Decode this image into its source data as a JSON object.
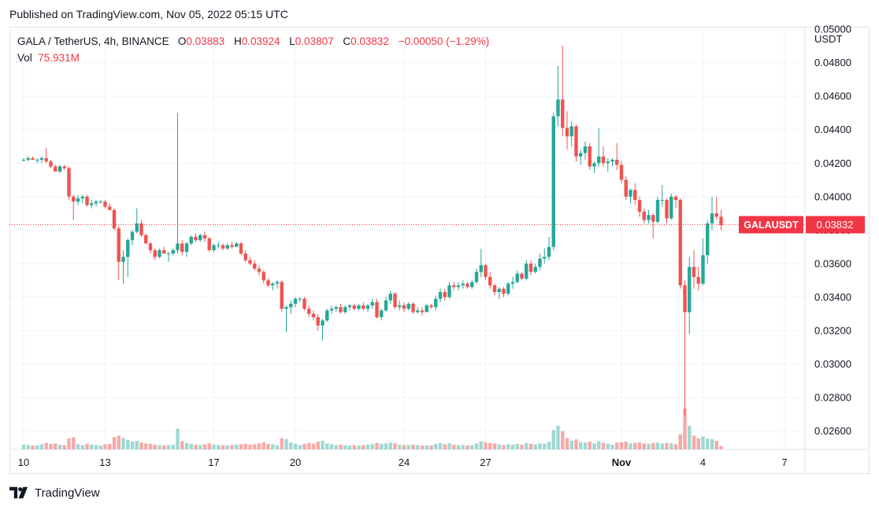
{
  "header": {
    "published": "Published on TradingView.com, Nov 05, 2022 05:15 UTC"
  },
  "legend": {
    "symbol": "GALA / TetherUS, 4h, BINANCE",
    "open_label": "O",
    "open": "0.03883",
    "high_label": "H",
    "high": "0.03924",
    "low_label": "L",
    "low": "0.03807",
    "close_label": "C",
    "close": "0.03832",
    "change": "−0.00050 (−1.29%)",
    "vol_label": "Vol",
    "vol": "75.931M"
  },
  "axis": {
    "currency": "USDT"
  },
  "price_tag": {
    "symbol": "GALAUSDT",
    "value": "0.03832"
  },
  "brand": {
    "name": "TradingView",
    "icon": "tradingview-logo-icon"
  },
  "colors": {
    "up": "#26a69a",
    "down": "#ef5350",
    "up_vol": "#9fd8d3",
    "down_vol": "#f7a9a7",
    "tag": "#f23645"
  },
  "chart_data": {
    "type": "candlestick",
    "interval": "4h",
    "ylim": [
      0.0249,
      0.0501
    ],
    "y_ticks": [
      "0.02600",
      "0.02800",
      "0.03000",
      "0.03200",
      "0.03400",
      "0.03600",
      "0.03800",
      "0.04000",
      "0.04200",
      "0.04400",
      "0.04600",
      "0.04800",
      "0.05000"
    ],
    "x_ticks": [
      {
        "label": "10",
        "index": 0
      },
      {
        "label": "13",
        "index": 18
      },
      {
        "label": "17",
        "index": 42
      },
      {
        "label": "20",
        "index": 60
      },
      {
        "label": "24",
        "index": 84
      },
      {
        "label": "27",
        "index": 102
      },
      {
        "label": "Nov",
        "index": 132
      },
      {
        "label": "4",
        "index": 150
      },
      {
        "label": "7",
        "index": 168
      }
    ],
    "last_close": 0.03832,
    "grid": true,
    "candles": [
      [
        0.0422,
        0.0423,
        0.0421,
        0.0422,
        1.1
      ],
      [
        0.0422,
        0.0424,
        0.0421,
        0.0423,
        1.0
      ],
      [
        0.0423,
        0.0424,
        0.0422,
        0.0422,
        0.9
      ],
      [
        0.0422,
        0.0423,
        0.042,
        0.0422,
        1.0
      ],
      [
        0.0422,
        0.0424,
        0.042,
        0.0423,
        1.2
      ],
      [
        0.0423,
        0.0429,
        0.042,
        0.0421,
        1.5
      ],
      [
        0.0421,
        0.0422,
        0.0417,
        0.0418,
        1.3
      ],
      [
        0.0418,
        0.0419,
        0.0415,
        0.0415,
        1.4
      ],
      [
        0.0415,
        0.0419,
        0.0414,
        0.0418,
        1.1
      ],
      [
        0.0418,
        0.0419,
        0.0416,
        0.0417,
        1.0
      ],
      [
        0.0417,
        0.0418,
        0.0398,
        0.04,
        2.5
      ],
      [
        0.04,
        0.0401,
        0.0386,
        0.0397,
        2.8
      ],
      [
        0.0397,
        0.0401,
        0.0395,
        0.0399,
        1.2
      ],
      [
        0.0399,
        0.0401,
        0.0396,
        0.04,
        1.0
      ],
      [
        0.04,
        0.0401,
        0.0394,
        0.0395,
        1.3
      ],
      [
        0.0395,
        0.0398,
        0.0393,
        0.0396,
        1.1
      ],
      [
        0.0396,
        0.0398,
        0.0394,
        0.0397,
        1.0
      ],
      [
        0.0397,
        0.0398,
        0.0396,
        0.0397,
        0.9
      ],
      [
        0.0397,
        0.0398,
        0.0393,
        0.0394,
        1.2
      ],
      [
        0.0394,
        0.0396,
        0.0392,
        0.0392,
        1.3
      ],
      [
        0.0392,
        0.0393,
        0.038,
        0.0381,
        2.9
      ],
      [
        0.0381,
        0.0382,
        0.035,
        0.0361,
        3.2
      ],
      [
        0.0361,
        0.0368,
        0.0348,
        0.0364,
        2.7
      ],
      [
        0.0364,
        0.0375,
        0.0352,
        0.0374,
        2.2
      ],
      [
        0.0374,
        0.038,
        0.0371,
        0.0379,
        1.8
      ],
      [
        0.0379,
        0.0393,
        0.0378,
        0.0384,
        2.0
      ],
      [
        0.0384,
        0.0386,
        0.0376,
        0.0377,
        1.6
      ],
      [
        0.0377,
        0.0378,
        0.0372,
        0.0372,
        1.4
      ],
      [
        0.0372,
        0.0373,
        0.0366,
        0.0368,
        1.3
      ],
      [
        0.0368,
        0.0369,
        0.0362,
        0.0364,
        1.1
      ],
      [
        0.0364,
        0.0369,
        0.0363,
        0.0368,
        1.0
      ],
      [
        0.0368,
        0.037,
        0.0366,
        0.0366,
        0.9
      ],
      [
        0.0366,
        0.0367,
        0.0361,
        0.0366,
        1.0
      ],
      [
        0.0366,
        0.0369,
        0.0365,
        0.0368,
        1.1
      ],
      [
        0.0368,
        0.045,
        0.0366,
        0.0372,
        4.8
      ],
      [
        0.0372,
        0.0374,
        0.0365,
        0.0367,
        1.9
      ],
      [
        0.0367,
        0.0373,
        0.0364,
        0.0372,
        1.5
      ],
      [
        0.0372,
        0.0377,
        0.0371,
        0.0376,
        1.3
      ],
      [
        0.0376,
        0.0378,
        0.0373,
        0.0374,
        1.1
      ],
      [
        0.0374,
        0.0378,
        0.0373,
        0.0377,
        1.0
      ],
      [
        0.0377,
        0.0379,
        0.0373,
        0.0375,
        1.2
      ],
      [
        0.0375,
        0.0376,
        0.0367,
        0.0368,
        1.4
      ],
      [
        0.0368,
        0.0372,
        0.0367,
        0.0371,
        1.1
      ],
      [
        0.0371,
        0.0373,
        0.0369,
        0.0371,
        1.0
      ],
      [
        0.0371,
        0.0372,
        0.0368,
        0.0369,
        1.0
      ],
      [
        0.0369,
        0.0372,
        0.0368,
        0.0371,
        0.9
      ],
      [
        0.0371,
        0.0373,
        0.0369,
        0.037,
        1.0
      ],
      [
        0.037,
        0.0373,
        0.037,
        0.0372,
        1.1
      ],
      [
        0.0372,
        0.0373,
        0.0365,
        0.0366,
        1.2
      ],
      [
        0.0366,
        0.0368,
        0.0361,
        0.0362,
        1.3
      ],
      [
        0.0362,
        0.0364,
        0.0359,
        0.036,
        1.1
      ],
      [
        0.036,
        0.0362,
        0.0356,
        0.0357,
        1.2
      ],
      [
        0.0357,
        0.0359,
        0.0353,
        0.0355,
        1.4
      ],
      [
        0.0355,
        0.0356,
        0.0348,
        0.035,
        1.6
      ],
      [
        0.035,
        0.0351,
        0.0346,
        0.0347,
        1.3
      ],
      [
        0.0347,
        0.0349,
        0.0344,
        0.0348,
        1.2
      ],
      [
        0.0348,
        0.035,
        0.0345,
        0.0349,
        1.0
      ],
      [
        0.0349,
        0.035,
        0.0331,
        0.0333,
        2.6
      ],
      [
        0.0333,
        0.0335,
        0.0319,
        0.0334,
        2.4
      ],
      [
        0.0334,
        0.0338,
        0.033,
        0.0336,
        1.6
      ],
      [
        0.0336,
        0.034,
        0.0334,
        0.0339,
        1.3
      ],
      [
        0.0339,
        0.034,
        0.0337,
        0.0339,
        1.0
      ],
      [
        0.0339,
        0.034,
        0.0332,
        0.0333,
        1.3
      ],
      [
        0.0333,
        0.0335,
        0.0328,
        0.033,
        1.5
      ],
      [
        0.033,
        0.0332,
        0.0326,
        0.0328,
        1.3
      ],
      [
        0.0328,
        0.033,
        0.032,
        0.0323,
        1.8
      ],
      [
        0.0323,
        0.0327,
        0.0314,
        0.0326,
        2.0
      ],
      [
        0.0326,
        0.0333,
        0.0325,
        0.0332,
        1.4
      ],
      [
        0.0332,
        0.0335,
        0.033,
        0.0333,
        1.2
      ],
      [
        0.0333,
        0.0335,
        0.0331,
        0.0334,
        1.0
      ],
      [
        0.0334,
        0.0336,
        0.033,
        0.0331,
        1.1
      ],
      [
        0.0331,
        0.0335,
        0.033,
        0.0334,
        1.0
      ],
      [
        0.0334,
        0.0336,
        0.0332,
        0.0335,
        0.9
      ],
      [
        0.0335,
        0.0336,
        0.0332,
        0.0333,
        1.0
      ],
      [
        0.0333,
        0.0336,
        0.0332,
        0.0335,
        0.9
      ],
      [
        0.0335,
        0.0337,
        0.0332,
        0.0333,
        1.0
      ],
      [
        0.0333,
        0.0336,
        0.0331,
        0.0335,
        1.1
      ],
      [
        0.0335,
        0.0339,
        0.0333,
        0.0337,
        1.2
      ],
      [
        0.0337,
        0.0339,
        0.0327,
        0.0328,
        1.5
      ],
      [
        0.0328,
        0.0333,
        0.0326,
        0.0332,
        1.3
      ],
      [
        0.0332,
        0.034,
        0.0331,
        0.0338,
        1.4
      ],
      [
        0.0338,
        0.0344,
        0.0336,
        0.0342,
        1.6
      ],
      [
        0.0342,
        0.0343,
        0.0333,
        0.0334,
        1.4
      ],
      [
        0.0334,
        0.0338,
        0.0332,
        0.0335,
        1.1
      ],
      [
        0.0335,
        0.0337,
        0.0331,
        0.0333,
        1.0
      ],
      [
        0.0333,
        0.0337,
        0.0332,
        0.0336,
        1.0
      ],
      [
        0.0336,
        0.0337,
        0.033,
        0.0331,
        1.1
      ],
      [
        0.0331,
        0.0334,
        0.033,
        0.0332,
        1.0
      ],
      [
        0.0332,
        0.0334,
        0.0329,
        0.0331,
        0.9
      ],
      [
        0.0331,
        0.0336,
        0.0331,
        0.0335,
        1.0
      ],
      [
        0.0335,
        0.0336,
        0.0333,
        0.0334,
        0.9
      ],
      [
        0.0334,
        0.0341,
        0.0332,
        0.0339,
        1.3
      ],
      [
        0.0339,
        0.0345,
        0.0337,
        0.0343,
        1.5
      ],
      [
        0.0343,
        0.0345,
        0.0338,
        0.034,
        1.2
      ],
      [
        0.034,
        0.0349,
        0.0339,
        0.0347,
        1.4
      ],
      [
        0.0347,
        0.0349,
        0.0344,
        0.0346,
        1.1
      ],
      [
        0.0346,
        0.0349,
        0.0344,
        0.0347,
        1.0
      ],
      [
        0.0347,
        0.035,
        0.0345,
        0.0348,
        1.0
      ],
      [
        0.0348,
        0.0349,
        0.0345,
        0.0346,
        0.9
      ],
      [
        0.0346,
        0.035,
        0.0345,
        0.0349,
        1.0
      ],
      [
        0.0349,
        0.0357,
        0.0348,
        0.0355,
        1.4
      ],
      [
        0.0355,
        0.0369,
        0.0352,
        0.0359,
        1.9
      ],
      [
        0.0359,
        0.036,
        0.035,
        0.0352,
        1.6
      ],
      [
        0.0352,
        0.0355,
        0.0345,
        0.0347,
        1.5
      ],
      [
        0.0347,
        0.0348,
        0.0341,
        0.0343,
        1.4
      ],
      [
        0.0343,
        0.0346,
        0.0339,
        0.0345,
        1.2
      ],
      [
        0.0345,
        0.0346,
        0.034,
        0.0342,
        1.0
      ],
      [
        0.0342,
        0.0349,
        0.0341,
        0.0348,
        1.2
      ],
      [
        0.0348,
        0.0352,
        0.0345,
        0.0349,
        1.1
      ],
      [
        0.0349,
        0.0356,
        0.0348,
        0.0354,
        1.3
      ],
      [
        0.0354,
        0.0355,
        0.035,
        0.0351,
        1.1
      ],
      [
        0.0351,
        0.0362,
        0.035,
        0.036,
        1.5
      ],
      [
        0.036,
        0.0362,
        0.0353,
        0.0355,
        1.3
      ],
      [
        0.0355,
        0.036,
        0.0354,
        0.0358,
        1.1
      ],
      [
        0.0358,
        0.0366,
        0.0356,
        0.0363,
        1.4
      ],
      [
        0.0363,
        0.0369,
        0.036,
        0.0364,
        1.3
      ],
      [
        0.0364,
        0.0376,
        0.0362,
        0.037,
        1.8
      ],
      [
        0.037,
        0.045,
        0.0368,
        0.0448,
        4.5
      ],
      [
        0.0448,
        0.0478,
        0.0442,
        0.0458,
        5.5
      ],
      [
        0.0458,
        0.049,
        0.0436,
        0.0441,
        4.2
      ],
      [
        0.0441,
        0.0451,
        0.0428,
        0.0436,
        2.6
      ],
      [
        0.0436,
        0.0445,
        0.043,
        0.0442,
        2.0
      ],
      [
        0.0442,
        0.0443,
        0.0421,
        0.0424,
        2.3
      ],
      [
        0.0424,
        0.0428,
        0.0419,
        0.0426,
        1.7
      ],
      [
        0.0426,
        0.0433,
        0.0422,
        0.043,
        1.6
      ],
      [
        0.043,
        0.0432,
        0.0416,
        0.0418,
        1.8
      ],
      [
        0.0418,
        0.0421,
        0.0414,
        0.042,
        1.4
      ],
      [
        0.042,
        0.0441,
        0.0418,
        0.0424,
        1.9
      ],
      [
        0.0424,
        0.043,
        0.0418,
        0.042,
        1.5
      ],
      [
        0.042,
        0.0423,
        0.0415,
        0.0421,
        1.3
      ],
      [
        0.0421,
        0.0423,
        0.0418,
        0.0422,
        1.1
      ],
      [
        0.0422,
        0.0432,
        0.0416,
        0.0419,
        1.6
      ],
      [
        0.0419,
        0.0421,
        0.0408,
        0.041,
        1.7
      ],
      [
        0.041,
        0.0412,
        0.0398,
        0.04,
        1.8
      ],
      [
        0.04,
        0.0405,
        0.0396,
        0.0404,
        1.4
      ],
      [
        0.0404,
        0.0408,
        0.0395,
        0.0398,
        1.5
      ],
      [
        0.0398,
        0.04,
        0.0388,
        0.0391,
        1.6
      ],
      [
        0.0391,
        0.0393,
        0.0384,
        0.0386,
        1.4
      ],
      [
        0.0386,
        0.0392,
        0.0384,
        0.0389,
        1.3
      ],
      [
        0.0389,
        0.039,
        0.0375,
        0.0385,
        1.5
      ],
      [
        0.0385,
        0.04,
        0.0384,
        0.0398,
        1.6
      ],
      [
        0.0398,
        0.0407,
        0.0394,
        0.0398,
        1.4
      ],
      [
        0.0398,
        0.0399,
        0.0384,
        0.0387,
        1.5
      ],
      [
        0.0387,
        0.0402,
        0.0386,
        0.04,
        1.4
      ],
      [
        0.04,
        0.0401,
        0.0393,
        0.0398,
        1.2
      ],
      [
        0.0398,
        0.0399,
        0.0345,
        0.0347,
        3.5
      ],
      [
        0.0347,
        0.035,
        0.0269,
        0.0331,
        9.5
      ],
      [
        0.0331,
        0.0364,
        0.0318,
        0.0358,
        5.5
      ],
      [
        0.0358,
        0.0368,
        0.0345,
        0.0352,
        3.2
      ],
      [
        0.0352,
        0.0358,
        0.0344,
        0.0348,
        2.6
      ],
      [
        0.0348,
        0.0375,
        0.0347,
        0.0365,
        3.0
      ],
      [
        0.0365,
        0.0386,
        0.036,
        0.0384,
        2.5
      ],
      [
        0.0384,
        0.04,
        0.038,
        0.039,
        2.4
      ],
      [
        0.039,
        0.04,
        0.0386,
        0.0388,
        2.0
      ],
      [
        0.0388,
        0.0392,
        0.038,
        0.0383,
        0.8
      ]
    ]
  }
}
